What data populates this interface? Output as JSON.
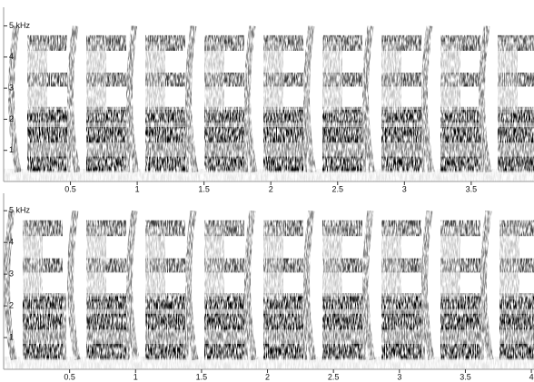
{
  "chart_data": [
    {
      "type": "spectrogram",
      "xlim": [
        0,
        3.97
      ],
      "xticks": [
        0.5,
        1,
        1.5,
        2,
        2.5,
        3,
        3.5
      ],
      "ylim": [
        0,
        5.6
      ],
      "yticks": [
        {
          "value": 5,
          "label": "5 kHz"
        },
        4,
        3,
        2,
        1
      ]
    },
    {
      "type": "spectrogram",
      "xlim": [
        0,
        4.02
      ],
      "xticks": [
        0.5,
        1,
        1.5,
        2,
        2.5,
        3,
        3.5,
        4
      ],
      "ylim": [
        0,
        5.55
      ],
      "yticks": [
        {
          "value": 5,
          "label": "5 kHz"
        },
        4,
        3,
        2,
        1
      ]
    }
  ]
}
